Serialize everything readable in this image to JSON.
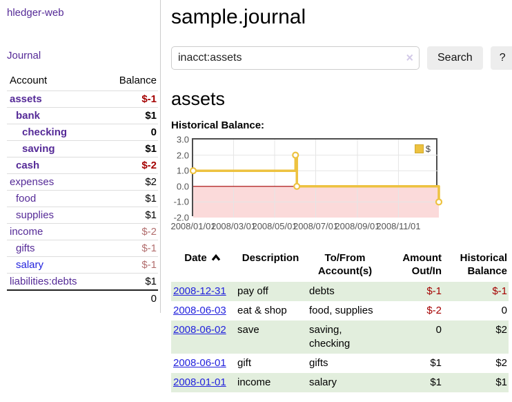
{
  "colors": {
    "link_purple": "#552a97",
    "link_blue": "#2222dd",
    "negative_strong": "#a40000",
    "negative_muted": "#b26e6e",
    "row_stripe_green": "#e2eedd"
  },
  "sidebar": {
    "app_title": "hledger-web",
    "nav": {
      "journal_label": "Journal"
    },
    "accounts_table": {
      "headers": {
        "account": "Account",
        "balance": "Balance"
      },
      "rows": [
        {
          "name": "assets",
          "indent": 0,
          "bold": true,
          "balance": "$-1",
          "balance_style": "neg-strong"
        },
        {
          "name": "bank",
          "indent": 1,
          "bold": true,
          "balance": "$1",
          "balance_style": ""
        },
        {
          "name": "checking",
          "indent": 2,
          "bold": true,
          "balance": "0",
          "balance_style": ""
        },
        {
          "name": "saving",
          "indent": 2,
          "bold": true,
          "balance": "$1",
          "balance_style": ""
        },
        {
          "name": "cash",
          "indent": 1,
          "bold": true,
          "balance": "$-2",
          "balance_style": "neg-strong"
        },
        {
          "name": "expenses",
          "indent": 0,
          "bold": false,
          "balance": "$2",
          "balance_style": ""
        },
        {
          "name": "food",
          "indent": 1,
          "bold": false,
          "balance": "$1",
          "balance_style": ""
        },
        {
          "name": "supplies",
          "indent": 1,
          "bold": false,
          "balance": "$1",
          "balance_style": ""
        },
        {
          "name": "income",
          "indent": 0,
          "bold": false,
          "balance": "$-2",
          "balance_style": "neg-muted"
        },
        {
          "name": "gifts",
          "indent": 1,
          "bold": false,
          "balance": "$-1",
          "balance_style": "neg-muted"
        },
        {
          "name": "salary",
          "indent": 1,
          "bold": false,
          "balance": "$-1",
          "balance_style": "neg-muted",
          "unvisited": true
        },
        {
          "name": "liabilities:debts",
          "indent": 0,
          "bold": false,
          "balance": "$1",
          "balance_style": ""
        }
      ],
      "total": "0"
    }
  },
  "header": {
    "title": "sample.journal"
  },
  "search": {
    "query": "inacct:assets",
    "clear_icon": "×",
    "button_label": "Search",
    "help_label": "?"
  },
  "account_page": {
    "heading": "assets",
    "chart_title": "Historical Balance:"
  },
  "chart_data": {
    "type": "line",
    "step": true,
    "title": "Historical Balance",
    "series": [
      {
        "name": "$",
        "color": "#edc240",
        "points": [
          {
            "x": "2008-01-01",
            "y": 1
          },
          {
            "x": "2008-06-01",
            "y": 2
          },
          {
            "x": "2008-06-03",
            "y": 0
          },
          {
            "x": "2008-12-31",
            "y": -1
          }
        ]
      }
    ],
    "x_ticks": [
      "2008/01/01",
      "2008/03/01",
      "2008/05/01",
      "2008/07/01",
      "2008/09/01",
      "2008/11/01"
    ],
    "y_ticks": [
      3.0,
      2.0,
      1.0,
      0.0,
      -1.0,
      -2.0
    ],
    "ylim": [
      -2,
      3
    ],
    "xlim": [
      "2008-01-01",
      "2008-12-31"
    ],
    "legend": {
      "label": "$",
      "swatch_color": "#edc240",
      "position": "top-right"
    },
    "zero_line_color": "#a40000",
    "negative_region_color": "#fbdada",
    "grid_color": "#e5e5e5",
    "border_color": "#4d4d4d",
    "grid": true
  },
  "transactions": {
    "columns": [
      {
        "id": "date",
        "lines": [
          "Date"
        ],
        "align": "left",
        "sorted": true
      },
      {
        "id": "description",
        "lines": [
          "Description"
        ],
        "align": "left"
      },
      {
        "id": "account",
        "lines": [
          "To/From",
          "Account(s)"
        ],
        "align": "left"
      },
      {
        "id": "amount",
        "lines": [
          "Amount",
          "Out/In"
        ],
        "align": "right"
      },
      {
        "id": "balance",
        "lines": [
          "Historical",
          "Balance"
        ],
        "align": "right"
      }
    ],
    "rows": [
      {
        "date": "2008-12-31",
        "description": "pay off",
        "account": "debts",
        "amount": "$-1",
        "amount_neg": true,
        "balance": "$-1",
        "balance_neg": true,
        "shaded": true
      },
      {
        "date": "2008-06-03",
        "description": "eat & shop",
        "account": "food, supplies",
        "amount": "$-2",
        "amount_neg": true,
        "balance": "0",
        "balance_neg": false,
        "shaded": false
      },
      {
        "date": "2008-06-02",
        "description": "save",
        "account": "saving, checking",
        "amount": "0",
        "amount_neg": false,
        "balance": "$2",
        "balance_neg": false,
        "shaded": true
      },
      {
        "date": "2008-06-01",
        "description": "gift",
        "account": "gifts",
        "amount": "$1",
        "amount_neg": false,
        "balance": "$2",
        "balance_neg": false,
        "shaded": false
      },
      {
        "date": "2008-01-01",
        "description": "income",
        "account": "salary",
        "amount": "$1",
        "amount_neg": false,
        "balance": "$1",
        "balance_neg": false,
        "shaded": true
      }
    ]
  }
}
